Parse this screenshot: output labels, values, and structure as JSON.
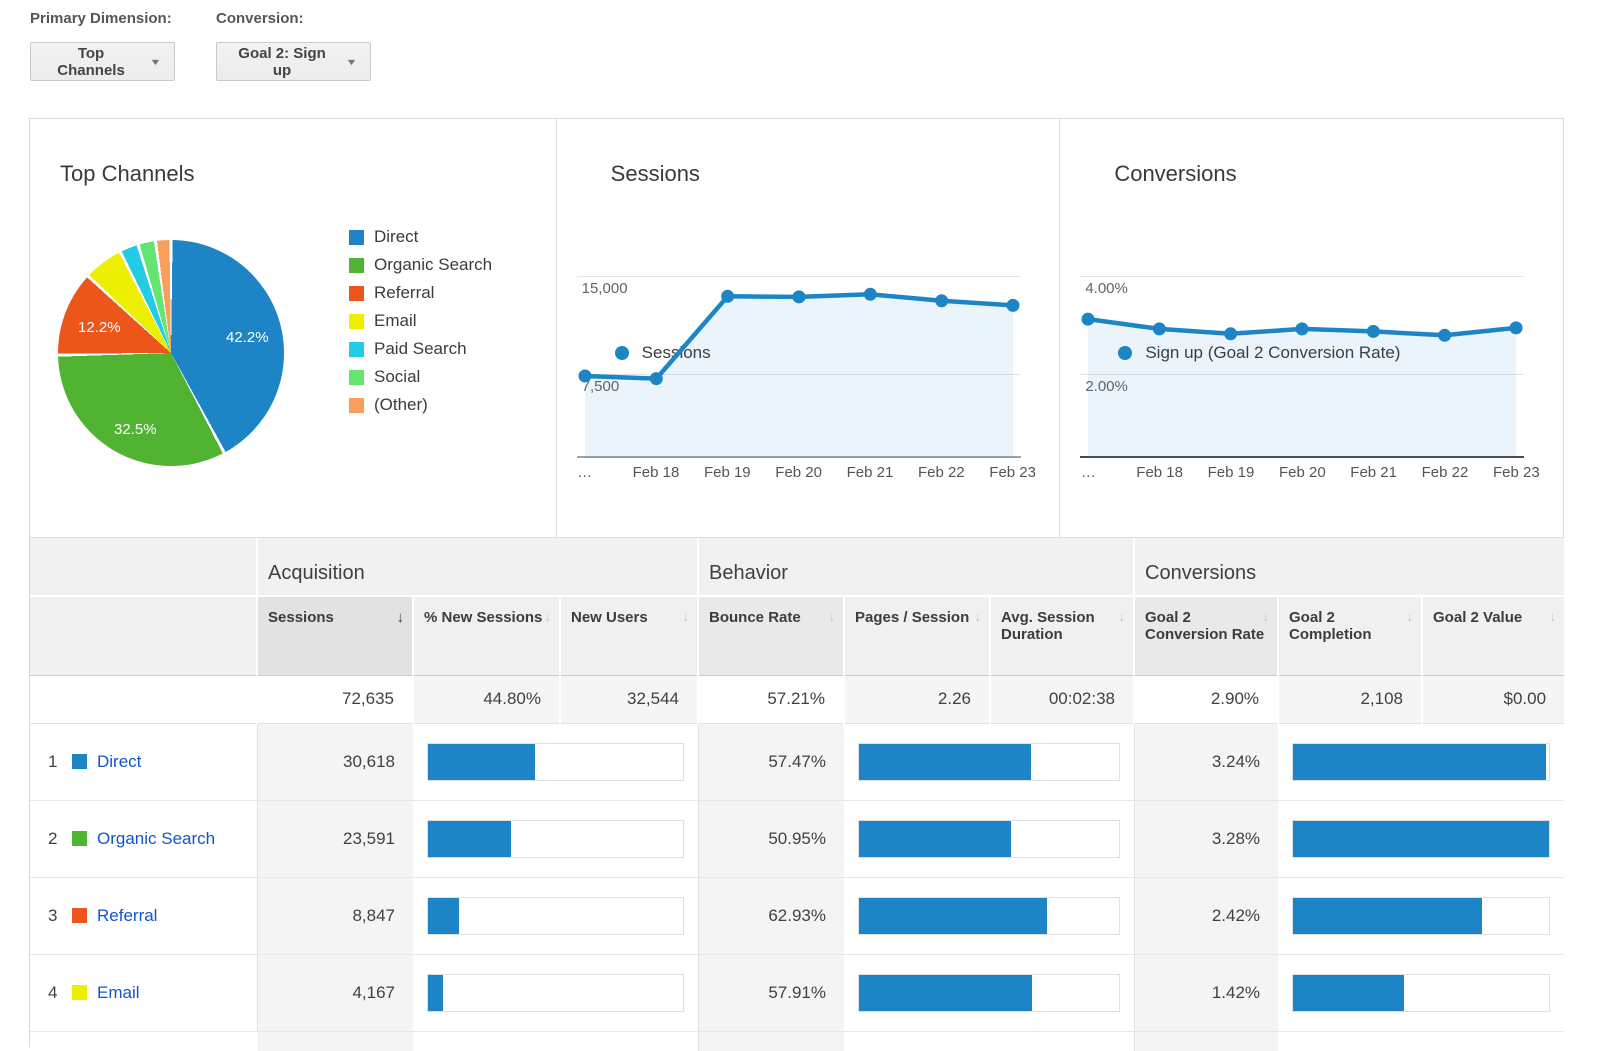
{
  "toolbar": {
    "primary_dimension_label": "Primary Dimension:",
    "primary_dimension_value": "Top Channels",
    "conversion_label": "Conversion:",
    "conversion_value": "Goal 2: Sign up"
  },
  "colors": {
    "series_blue": "#1d85c6",
    "area_fill": "rgba(29,133,198,0.09)",
    "link_blue": "#1155cc"
  },
  "chart_data": [
    {
      "type": "pie",
      "title": "Top Channels",
      "slices": [
        {
          "label": "Direct",
          "value": 42.2,
          "color": "#1d85c6"
        },
        {
          "label": "Organic Search",
          "value": 32.5,
          "color": "#50b432"
        },
        {
          "label": "Referral",
          "value": 12.2,
          "color": "#ed561b"
        },
        {
          "label": "Email",
          "value": 5.7,
          "color": "#edef00"
        },
        {
          "label": "Paid Search",
          "value": 2.7,
          "color": "#24cbe5"
        },
        {
          "label": "Social",
          "value": 2.5,
          "color": "#64e572"
        },
        {
          "label": "(Other)",
          "value": 2.2,
          "color": "#f99f5b"
        }
      ],
      "callouts": [
        "42.2%",
        "32.5%",
        "12.2%"
      ],
      "legend_position": "right"
    },
    {
      "type": "area",
      "title": "Sessions",
      "legend": "Sessions",
      "x": [
        "…",
        "Feb 18",
        "Feb 19",
        "Feb 20",
        "Feb 21",
        "Feb 22",
        "Feb 23"
      ],
      "values": [
        7350,
        7150,
        13450,
        13400,
        13600,
        13100,
        12750
      ],
      "ylim": [
        0,
        16500
      ],
      "grid_values": [
        15000,
        7500
      ],
      "grid_labels": [
        "15,000",
        "7,500"
      ],
      "axis_color": "#a0a0a0"
    },
    {
      "type": "area",
      "title": "Conversions",
      "legend": "Sign up (Goal 2 Conversion Rate)",
      "x": [
        "…",
        "Feb 18",
        "Feb 19",
        "Feb 20",
        "Feb 21",
        "Feb 22",
        "Feb 23"
      ],
      "values": [
        3.12,
        2.92,
        2.82,
        2.92,
        2.87,
        2.79,
        2.94
      ],
      "ylim": [
        0,
        4.4
      ],
      "grid_values": [
        4,
        2
      ],
      "grid_labels": [
        "4.00%",
        "2.00%"
      ],
      "axis_color": "#4a4a4a"
    }
  ],
  "table": {
    "groups": [
      "Acquisition",
      "Behavior",
      "Conversions"
    ],
    "columns": [
      {
        "label": "Sessions",
        "sorted": true,
        "primary": true
      },
      {
        "label": "% New Sessions",
        "sorted": false,
        "primary": false
      },
      {
        "label": "New Users",
        "sorted": false,
        "primary": false
      },
      {
        "label": "Bounce Rate",
        "sorted": false,
        "primary": true
      },
      {
        "label": "Pages / Session",
        "sorted": false,
        "primary": false
      },
      {
        "label": "Avg. Session Duration",
        "sorted": false,
        "primary": false
      },
      {
        "label": "Goal 2 Conversion Rate",
        "sorted": false,
        "primary": true
      },
      {
        "label": "Goal 2 Completion",
        "sorted": false,
        "primary": false
      },
      {
        "label": "Goal 2 Value",
        "sorted": false,
        "primary": false
      }
    ],
    "totals": [
      "72,635",
      "44.80%",
      "32,544",
      "57.21%",
      "2.26",
      "00:02:38",
      "2.90%",
      "2,108",
      "$0.00"
    ],
    "rows": [
      {
        "rank": "1",
        "channel": "Direct",
        "color": "#1d85c6",
        "sessions": "30,618",
        "sessions_bar": 42.2,
        "bounce_rate": "57.47%",
        "bounce_bar": 66.2,
        "goal_rate": "3.24%",
        "goal_bar": 98.8
      },
      {
        "rank": "2",
        "channel": "Organic Search",
        "color": "#50b432",
        "sessions": "23,591",
        "sessions_bar": 32.5,
        "bounce_rate": "50.95%",
        "bounce_bar": 58.7,
        "goal_rate": "3.28%",
        "goal_bar": 100
      },
      {
        "rank": "3",
        "channel": "Referral",
        "color": "#ed561b",
        "sessions": "8,847",
        "sessions_bar": 12.2,
        "bounce_rate": "62.93%",
        "bounce_bar": 72.5,
        "goal_rate": "2.42%",
        "goal_bar": 73.8
      },
      {
        "rank": "4",
        "channel": "Email",
        "color": "#edef00",
        "sessions": "4,167",
        "sessions_bar": 5.7,
        "bounce_rate": "57.91%",
        "bounce_bar": 66.7,
        "goal_rate": "1.42%",
        "goal_bar": 43.3
      }
    ]
  }
}
